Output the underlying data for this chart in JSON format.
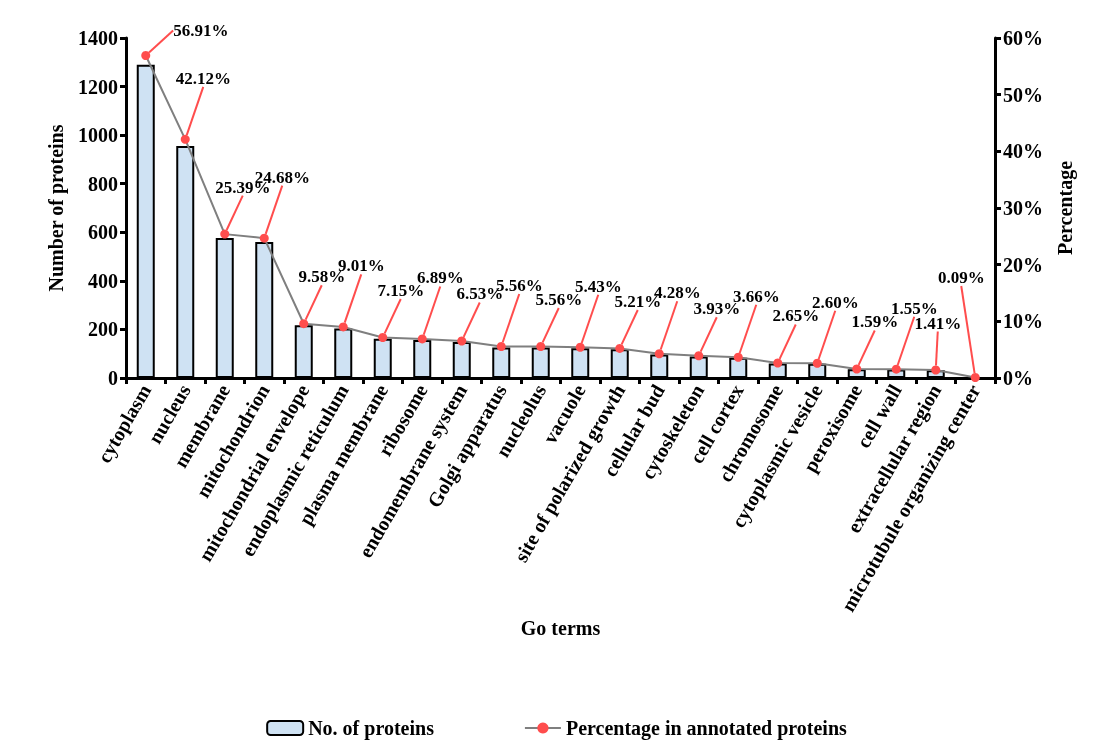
{
  "chart_data": {
    "type": "bar",
    "xlabel": "Go terms",
    "ylabel": "Number of proteins",
    "y2label": "Percentage",
    "categories": [
      "cytoplasm",
      "nucleus",
      "membrane",
      "mitochondrion",
      "mitochondrial envelope",
      "endoplasmic reticulum",
      "plasma membrane",
      "ribosome",
      "endomembrane system",
      "Golgi apparatus",
      "nucleolus",
      "vacuole",
      "site of polarized growth",
      "cellular bud",
      "cytoskeleton",
      "cell cortex",
      "chromosome",
      "cytoplasmic vesicle",
      "peroxisome",
      "cell wall",
      "extracellular region",
      "microtubule organizing center"
    ],
    "series": [
      {
        "name": "No. of proteins",
        "color": "#cfe2f3",
        "values": [
          1290,
          955,
          576,
          560,
          217,
          204,
          162,
          156,
          148,
          126,
          126,
          123,
          118,
          97,
          89,
          83,
          60,
          59,
          36,
          35,
          32,
          null
        ]
      },
      {
        "name": "Percentage in annotated proteins",
        "type": "line",
        "axis": "y2",
        "color": "#7f7f7f",
        "marker": "circle",
        "values": [
          56.91,
          42.12,
          25.39,
          24.68,
          9.58,
          9.01,
          7.15,
          6.89,
          6.53,
          5.56,
          5.56,
          5.43,
          5.21,
          4.28,
          3.93,
          3.66,
          2.65,
          2.6,
          1.59,
          1.55,
          1.41,
          0.09
        ],
        "value_labels": [
          "56.91%",
          "42.12%",
          "25.39%",
          "24.68%",
          "9.58%",
          "9.01%",
          "7.15%",
          "6.89%",
          "6.53%",
          "5.56%",
          "5.56%",
          "5.43%",
          "5.21%",
          "4.28%",
          "3.93%",
          "3.66%",
          "2.65%",
          "2.60%",
          "1.59%",
          "1.55%",
          "1.41%",
          "0.09%"
        ]
      }
    ],
    "ylim": [
      0,
      1400
    ],
    "yticks": [
      0,
      200,
      400,
      600,
      800,
      1000,
      1200,
      1400
    ],
    "y2lim": [
      0,
      60
    ],
    "y2ticks": [
      {
        "value": 0,
        "label": "0%"
      },
      {
        "value": 10,
        "label": "10%"
      },
      {
        "value": 20,
        "label": "20%"
      },
      {
        "value": 30,
        "label": "30%"
      },
      {
        "value": 40,
        "label": "40%"
      },
      {
        "value": 50,
        "label": "50%"
      },
      {
        "value": 60,
        "label": "60%"
      }
    ],
    "grid": false,
    "legend": "bottom"
  }
}
